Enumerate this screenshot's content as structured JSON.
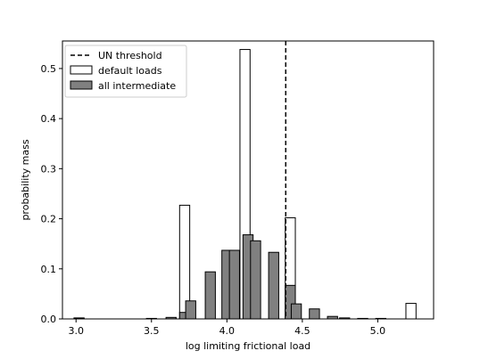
{
  "chart_data": {
    "type": "bar",
    "xlabel": "log limiting frictional load",
    "ylabel": "probability mass",
    "xlim": [
      2.91,
      5.37
    ],
    "ylim": [
      0,
      0.555
    ],
    "x_ticks": [
      "3.0",
      "3.5",
      "4.0",
      "4.5",
      "5.0"
    ],
    "x_tick_values": [
      3.0,
      3.5,
      4.0,
      4.5,
      5.0
    ],
    "y_ticks": [
      "0.0",
      "0.1",
      "0.2",
      "0.3",
      "0.4",
      "0.5"
    ],
    "y_tick_values": [
      0.0,
      0.1,
      0.2,
      0.3,
      0.4,
      0.5
    ],
    "bar_width": 0.067,
    "legend_position": "upper left",
    "threshold": {
      "name": "UN threshold",
      "x": 4.39,
      "style": "dashed",
      "color": "#000000"
    },
    "series": [
      {
        "name": "default loads",
        "fill": "#ffffff",
        "edge": "#000000",
        "bars": [
          {
            "x": 3.02,
            "y": 0.002
          },
          {
            "x": 3.72,
            "y": 0.227
          },
          {
            "x": 4.12,
            "y": 0.538
          },
          {
            "x": 4.42,
            "y": 0.202
          },
          {
            "x": 5.22,
            "y": 0.031
          }
        ]
      },
      {
        "name": "all intermediate",
        "fill": "#808080",
        "edge": "#000000",
        "bars": [
          {
            "x": 3.02,
            "y": 0.001
          },
          {
            "x": 3.5,
            "y": 0.001
          },
          {
            "x": 3.63,
            "y": 0.003
          },
          {
            "x": 3.72,
            "y": 0.013
          },
          {
            "x": 3.76,
            "y": 0.036
          },
          {
            "x": 3.89,
            "y": 0.094
          },
          {
            "x": 4.0,
            "y": 0.137
          },
          {
            "x": 4.05,
            "y": 0.137
          },
          {
            "x": 4.14,
            "y": 0.168
          },
          {
            "x": 4.19,
            "y": 0.156
          },
          {
            "x": 4.31,
            "y": 0.133
          },
          {
            "x": 4.42,
            "y": 0.067
          },
          {
            "x": 4.46,
            "y": 0.03
          },
          {
            "x": 4.58,
            "y": 0.02
          },
          {
            "x": 4.7,
            "y": 0.005
          },
          {
            "x": 4.78,
            "y": 0.002
          },
          {
            "x": 4.9,
            "y": 0.001
          },
          {
            "x": 5.02,
            "y": 0.001
          }
        ]
      }
    ]
  }
}
